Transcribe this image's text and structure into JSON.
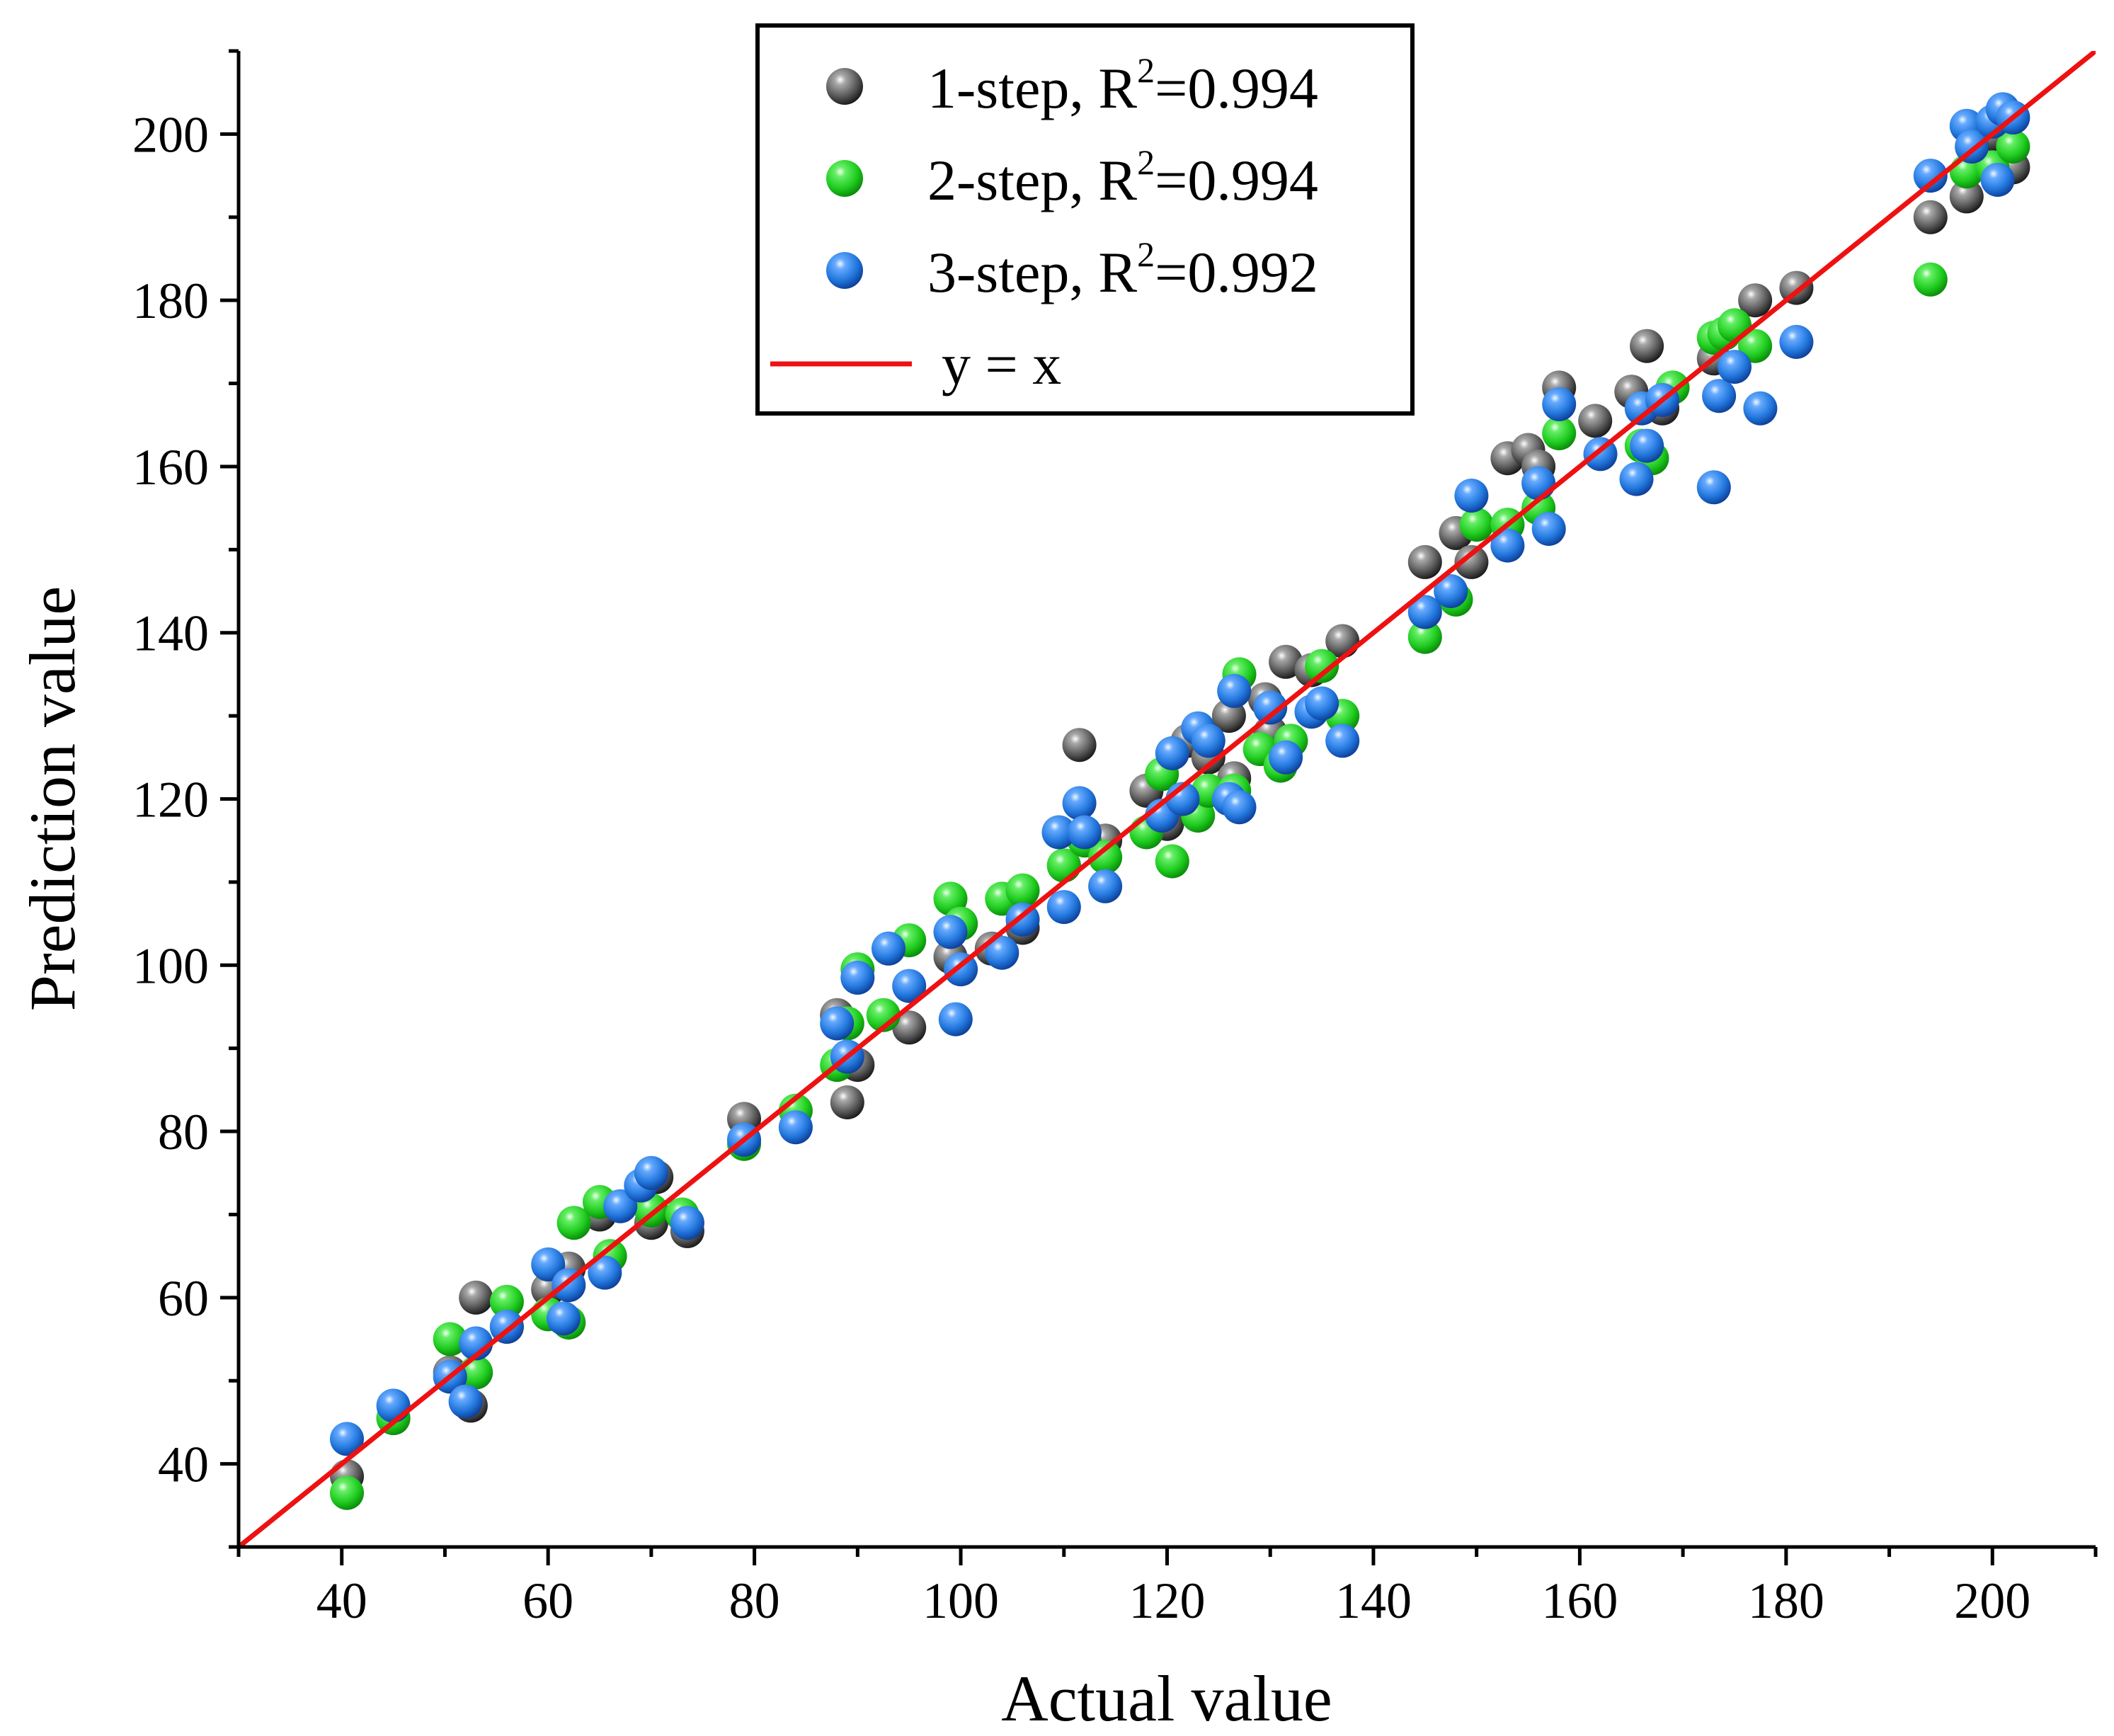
{
  "chart_data": {
    "type": "scatter",
    "title": "",
    "xlabel": "Actual value",
    "ylabel": "Prediction value",
    "xlim": [
      30,
      210
    ],
    "ylim": [
      30,
      210
    ],
    "xticks": [
      40,
      60,
      80,
      100,
      120,
      140,
      160,
      180,
      200
    ],
    "yticks": [
      40,
      60,
      80,
      100,
      120,
      140,
      160,
      180,
      200
    ],
    "legend_position": "top-center",
    "colors": {
      "step1": "#5a5a5a",
      "step2": "#22cc22",
      "step3": "#2277dd",
      "identity": "#ee1111"
    },
    "reference_line": {
      "label": "y = x",
      "slope": 1,
      "intercept": 0
    },
    "series": [
      {
        "name": "1-step",
        "legend_prefix": "1-step, R",
        "legend_sup": "2",
        "legend_suffix": "=0.994",
        "r2": 0.994,
        "color_key": "step1",
        "points": [
          [
            40.5,
            38.5
          ],
          [
            45,
            45.5
          ],
          [
            50.5,
            51
          ],
          [
            53,
            60
          ],
          [
            52.5,
            47
          ],
          [
            56,
            56.5
          ],
          [
            60,
            61
          ],
          [
            62,
            63.5
          ],
          [
            65,
            70
          ],
          [
            70,
            69
          ],
          [
            70.5,
            74.5
          ],
          [
            73.5,
            68
          ],
          [
            79,
            81.5
          ],
          [
            88,
            94
          ],
          [
            89,
            83.5
          ],
          [
            90,
            88
          ],
          [
            95,
            92.5
          ],
          [
            99,
            101
          ],
          [
            100,
            105
          ],
          [
            103,
            102
          ],
          [
            106,
            104.5
          ],
          [
            110,
            112
          ],
          [
            111.5,
            126.5
          ],
          [
            114,
            115
          ],
          [
            118,
            121
          ],
          [
            120,
            117
          ],
          [
            122,
            127
          ],
          [
            124,
            125
          ],
          [
            126,
            130
          ],
          [
            126.5,
            122.5
          ],
          [
            129.5,
            132
          ],
          [
            130,
            128
          ],
          [
            131.5,
            136.5
          ],
          [
            134,
            135.5
          ],
          [
            137,
            139
          ],
          [
            145,
            148.5
          ],
          [
            148,
            152
          ],
          [
            149.5,
            148.5
          ],
          [
            153,
            161
          ],
          [
            155,
            162
          ],
          [
            156,
            160
          ],
          [
            158,
            169.5
          ],
          [
            161.5,
            165.5
          ],
          [
            165,
            169
          ],
          [
            166.5,
            174.5
          ],
          [
            168,
            167
          ],
          [
            173,
            173
          ],
          [
            177,
            180
          ],
          [
            181,
            181.5
          ],
          [
            194,
            190
          ],
          [
            197.5,
            192.5
          ],
          [
            200,
            200
          ],
          [
            202,
            196
          ]
        ]
      },
      {
        "name": "2-step",
        "legend_prefix": "2-step, R",
        "legend_sup": "2",
        "legend_suffix": "=0.994",
        "r2": 0.994,
        "color_key": "step2",
        "points": [
          [
            40.5,
            36.5
          ],
          [
            45,
            45.5
          ],
          [
            50.5,
            55
          ],
          [
            53,
            51
          ],
          [
            56,
            59.5
          ],
          [
            60,
            58
          ],
          [
            62,
            57
          ],
          [
            62.5,
            69
          ],
          [
            65,
            71.5
          ],
          [
            66,
            65
          ],
          [
            70,
            70.5
          ],
          [
            73,
            70
          ],
          [
            79,
            78.5
          ],
          [
            84,
            82.5
          ],
          [
            88,
            88
          ],
          [
            89,
            93
          ],
          [
            90,
            99.5
          ],
          [
            92.5,
            94
          ],
          [
            95,
            103
          ],
          [
            99,
            108
          ],
          [
            100,
            105
          ],
          [
            104,
            108
          ],
          [
            106,
            109
          ],
          [
            110,
            112
          ],
          [
            112,
            115
          ],
          [
            114,
            113
          ],
          [
            118,
            116
          ],
          [
            119.5,
            123
          ],
          [
            120.5,
            112.5
          ],
          [
            123,
            118
          ],
          [
            124,
            121
          ],
          [
            126.5,
            121
          ],
          [
            127,
            135
          ],
          [
            129,
            126
          ],
          [
            131,
            124
          ],
          [
            132,
            127
          ],
          [
            135,
            136
          ],
          [
            137,
            130
          ],
          [
            145,
            139.5
          ],
          [
            148,
            144
          ],
          [
            150,
            153
          ],
          [
            153,
            153
          ],
          [
            156,
            155
          ],
          [
            158,
            164
          ],
          [
            166,
            162.5
          ],
          [
            167,
            161
          ],
          [
            169,
            169.5
          ],
          [
            173,
            175.5
          ],
          [
            174,
            176
          ],
          [
            175,
            177
          ],
          [
            177,
            174.5
          ],
          [
            194,
            182.5
          ],
          [
            197.5,
            195.5
          ],
          [
            200,
            196
          ],
          [
            202,
            198.5
          ]
        ]
      },
      {
        "name": "3-step",
        "legend_prefix": "3-step, R",
        "legend_sup": "2",
        "legend_suffix": "=0.992",
        "r2": 0.992,
        "color_key": "step3",
        "points": [
          [
            40.5,
            43
          ],
          [
            45,
            47
          ],
          [
            50.5,
            50.5
          ],
          [
            52,
            47.5
          ],
          [
            53,
            54.5
          ],
          [
            56,
            56.5
          ],
          [
            60,
            64
          ],
          [
            61.5,
            57.5
          ],
          [
            62,
            61.5
          ],
          [
            65.5,
            63
          ],
          [
            67,
            71
          ],
          [
            69,
            73.5
          ],
          [
            70,
            75
          ],
          [
            73.5,
            69
          ],
          [
            79,
            79
          ],
          [
            84,
            80.5
          ],
          [
            88,
            93
          ],
          [
            89,
            89
          ],
          [
            90,
            98.5
          ],
          [
            93,
            102
          ],
          [
            95,
            97.5
          ],
          [
            99.5,
            93.5
          ],
          [
            99,
            104
          ],
          [
            100,
            99.5
          ],
          [
            104,
            101.5
          ],
          [
            106,
            105.5
          ],
          [
            109.5,
            116
          ],
          [
            110,
            107
          ],
          [
            111.5,
            119.5
          ],
          [
            112,
            116
          ],
          [
            114,
            109.5
          ],
          [
            119.5,
            118
          ],
          [
            120.5,
            125.5
          ],
          [
            121.5,
            120
          ],
          [
            123,
            128.5
          ],
          [
            124,
            127
          ],
          [
            126,
            120
          ],
          [
            126.5,
            133
          ],
          [
            127,
            119
          ],
          [
            130,
            131
          ],
          [
            131.5,
            125
          ],
          [
            134,
            130.5
          ],
          [
            135,
            131.5
          ],
          [
            137,
            127
          ],
          [
            145,
            142.5
          ],
          [
            147.5,
            145
          ],
          [
            149.5,
            156.5
          ],
          [
            153,
            150.5
          ],
          [
            156,
            158
          ],
          [
            157,
            152.5
          ],
          [
            158,
            167.5
          ],
          [
            162,
            161.5
          ],
          [
            165.5,
            158.5
          ],
          [
            166,
            167
          ],
          [
            166.5,
            162.5
          ],
          [
            168,
            168
          ],
          [
            173,
            157.5
          ],
          [
            173.5,
            168.5
          ],
          [
            175,
            172
          ],
          [
            177.5,
            167
          ],
          [
            181,
            175
          ],
          [
            194,
            195
          ],
          [
            197.5,
            201
          ],
          [
            198,
            198.5
          ],
          [
            200,
            201.5
          ],
          [
            200.5,
            194.5
          ],
          [
            201,
            203
          ],
          [
            202,
            202
          ]
        ]
      }
    ]
  }
}
